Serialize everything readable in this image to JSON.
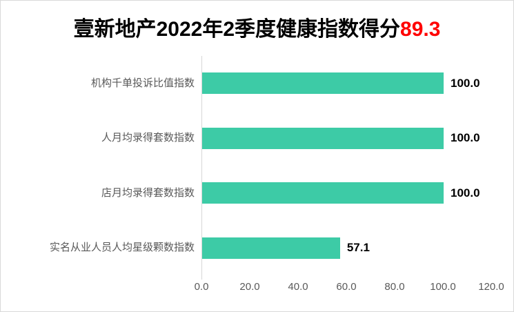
{
  "title": {
    "text": "壹新地产2022年2季度健康指数得分",
    "score": "89.3",
    "score_color": "#ff0000"
  },
  "chart_data": {
    "type": "bar",
    "orientation": "horizontal",
    "title": "壹新地产2022年2季度健康指数得分89.3",
    "categories": [
      "机构千单投诉比值指数",
      "人月均录得套数指数",
      "店月均录得套数指数",
      "实名从业人员人均星级颗数指数"
    ],
    "values": [
      100.0,
      100.0,
      100.0,
      57.1
    ],
    "value_labels": [
      "100.0",
      "100.0",
      "100.0",
      "57.1"
    ],
    "x_ticks": [
      "0.0",
      "20.0",
      "40.0",
      "60.0",
      "80.0",
      "100.0",
      "120.0"
    ],
    "xlim": [
      0,
      120
    ],
    "xlabel": "",
    "ylabel": "",
    "grid": false,
    "legend": false,
    "bar_color": "#3dcba6",
    "axis_line_color": "#d6d6d6",
    "category_label_color": "#595959",
    "tick_label_color": "#595959",
    "value_label_color": "#000000"
  }
}
